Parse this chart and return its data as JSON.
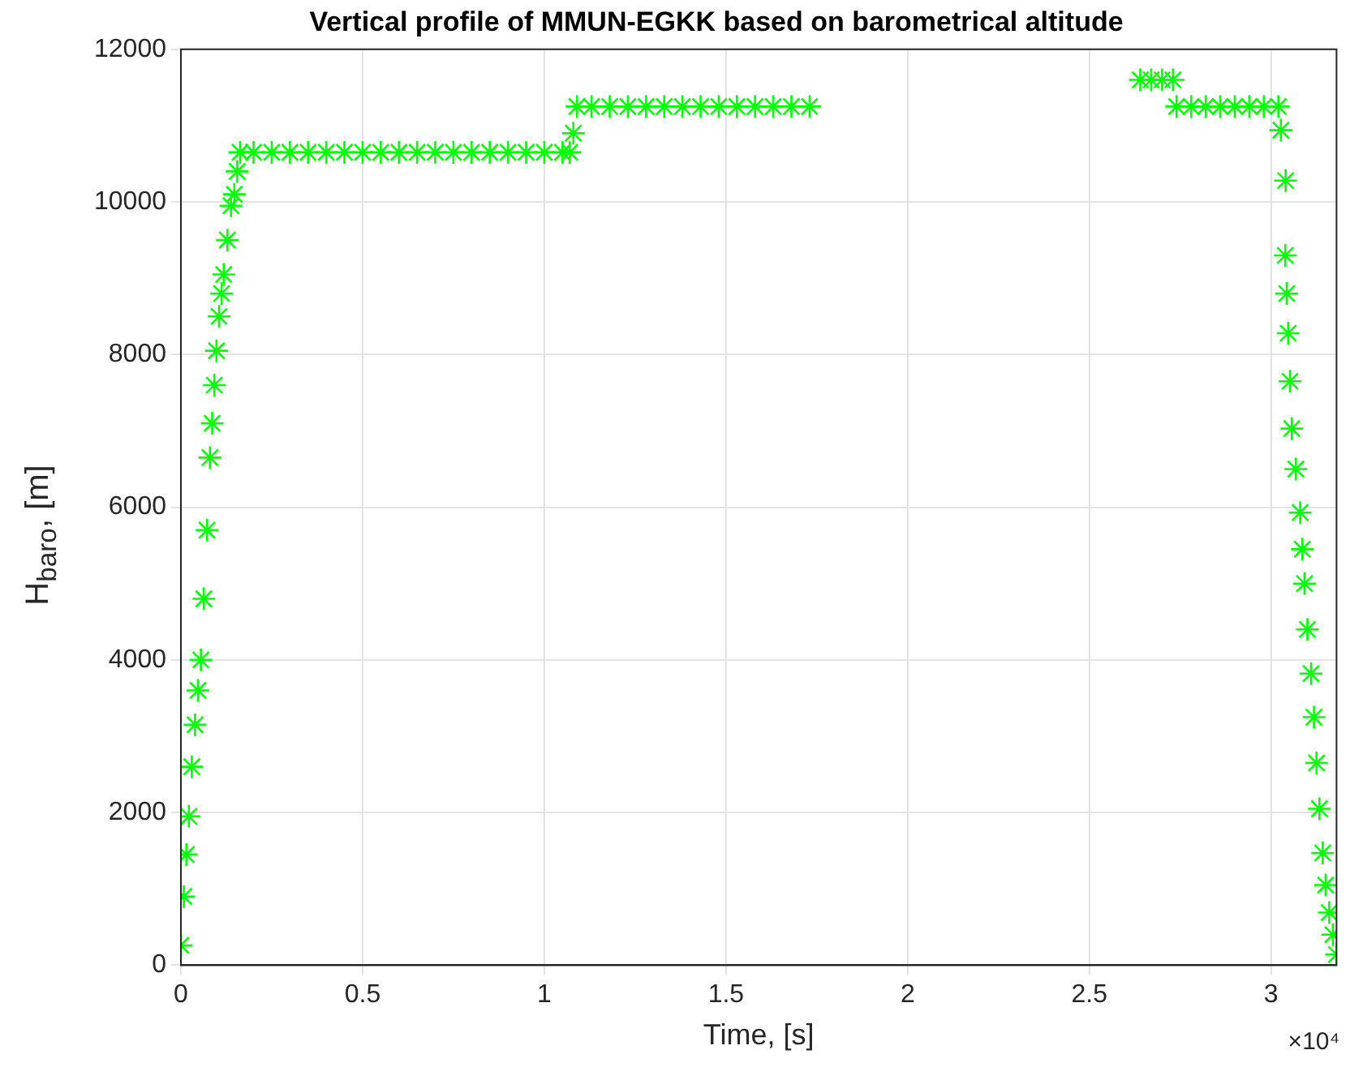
{
  "chart_data": {
    "type": "scatter",
    "title": "Vertical profile of MMUN-EGKK based on barometrical altitude",
    "xlabel": "Time, [s]",
    "ylabel": "H$_{baro}$, [m]",
    "annotations": [
      "×10⁴"
    ],
    "series": [
      {
        "color": "#00ff00",
        "x": [
          0,
          0.008,
          0.015,
          0.022,
          0.03,
          0.039,
          0.047,
          0.055,
          0.063,
          0.072,
          0.08,
          0.086,
          0.092,
          0.098,
          0.105,
          0.112,
          0.118,
          0.128,
          0.138,
          0.147,
          0.155,
          0.163,
          0.2,
          0.25,
          0.3,
          0.35,
          0.4,
          0.45,
          0.5,
          0.55,
          0.6,
          0.65,
          0.7,
          0.75,
          0.8,
          0.85,
          0.9,
          0.95,
          1,
          1.05,
          1.07,
          1.08,
          1.09,
          1.13,
          1.18,
          1.23,
          1.28,
          1.33,
          1.38,
          1.43,
          1.48,
          1.53,
          1.58,
          1.63,
          1.68,
          1.73,
          2.64,
          2.67,
          2.7,
          2.73,
          2.74,
          2.78,
          2.82,
          2.86,
          2.9,
          2.94,
          2.98,
          3.02,
          3.027,
          3.04,
          3.039,
          3.043,
          3.047,
          3.052,
          3.057,
          3.068,
          3.08,
          3.086,
          3.092,
          3.1,
          3.11,
          3.118,
          3.125,
          3.133,
          3.142,
          3.15,
          3.16,
          3.17,
          3.18
        ],
        "values": [
          260,
          900,
          1450,
          1950,
          2600,
          3150,
          3600,
          4000,
          4800,
          5700,
          6650,
          7100,
          7600,
          8050,
          8500,
          8800,
          9050,
          9500,
          9950,
          10100,
          10400,
          10650,
          10650,
          10650,
          10650,
          10650,
          10650,
          10650,
          10650,
          10650,
          10650,
          10650,
          10650,
          10650,
          10650,
          10650,
          10650,
          10650,
          10650,
          10650,
          10650,
          10900,
          11250,
          11250,
          11250,
          11250,
          11250,
          11250,
          11250,
          11250,
          11250,
          11250,
          11250,
          11250,
          11250,
          11250,
          11600,
          11600,
          11600,
          11600,
          11250,
          11250,
          11250,
          11250,
          11250,
          11250,
          11250,
          11250,
          10940,
          10280,
          9300,
          8800,
          8280,
          7650,
          7030,
          6500,
          5930,
          5450,
          5000,
          4400,
          3820,
          3250,
          2650,
          2050,
          1470,
          1050,
          690,
          400,
          140
        ]
      }
    ],
    "xlim": [
      0,
      3.18
    ],
    "xticks": [
      0,
      0.5,
      1,
      1.5,
      2,
      2.5,
      3
    ],
    "ylim": [
      0,
      12000
    ],
    "yticks": [
      0,
      2000,
      4000,
      6000,
      8000,
      10000,
      12000
    ],
    "grid": true,
    "marker": "cross",
    "legend": false
  }
}
